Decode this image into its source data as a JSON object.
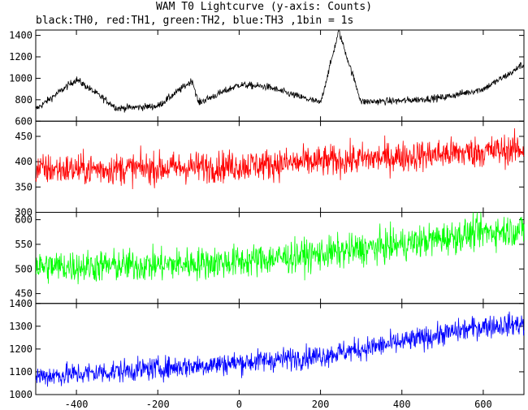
{
  "chart_data": {
    "type": "line",
    "title": "WAM T0 Lightcurve (y-axis: Counts)",
    "subtitle": "black:TH0, red:TH1, green:TH2, blue:TH3 ,1bin = 1s",
    "xlim": [
      -500,
      700
    ],
    "x_ticks": [
      -400,
      -200,
      0,
      200,
      400,
      600
    ],
    "grid": false,
    "series": [
      {
        "name": "TH0",
        "color": "#000000",
        "ylim": [
          600,
          1450
        ],
        "y_ticks": [
          600,
          800,
          1000,
          1200,
          1400
        ],
        "baseline_start": 700,
        "baseline_end": 950,
        "noise": 30,
        "features": [
          {
            "t": -400,
            "peak": 990
          },
          {
            "t": -115,
            "peak": 980
          },
          {
            "t": 0,
            "peak": 940
          },
          {
            "t": 70,
            "peak": 920
          },
          {
            "t": 120,
            "peak": 860
          },
          {
            "t": 245,
            "peak": 1440
          },
          {
            "t": 690,
            "peak": 1120
          }
        ],
        "points": [
          [
            -500,
            710
          ],
          [
            -400,
            990
          ],
          [
            -300,
            720
          ],
          [
            -200,
            740
          ],
          [
            -115,
            980
          ],
          [
            -100,
            770
          ],
          [
            0,
            940
          ],
          [
            70,
            920
          ],
          [
            120,
            860
          ],
          [
            200,
            770
          ],
          [
            245,
            1440
          ],
          [
            300,
            780
          ],
          [
            400,
            790
          ],
          [
            500,
            820
          ],
          [
            600,
            900
          ],
          [
            700,
            1120
          ]
        ]
      },
      {
        "name": "TH1",
        "color": "#ff0000",
        "ylim": [
          300,
          480
        ],
        "y_ticks": [
          300,
          350,
          400,
          450
        ],
        "baseline_start": 385,
        "baseline_end": 425,
        "noise": 28,
        "points": [
          [
            -500,
            385
          ],
          [
            -400,
            385
          ],
          [
            -200,
            387
          ],
          [
            0,
            392
          ],
          [
            200,
            400
          ],
          [
            400,
            410
          ],
          [
            600,
            420
          ],
          [
            700,
            425
          ]
        ]
      },
      {
        "name": "TH2",
        "color": "#00ff00",
        "ylim": [
          430,
          615
        ],
        "y_ticks": [
          450,
          500,
          550,
          600
        ],
        "baseline_start": 505,
        "baseline_end": 580,
        "noise": 30,
        "points": [
          [
            -500,
            505
          ],
          [
            -400,
            505
          ],
          [
            -200,
            508
          ],
          [
            0,
            515
          ],
          [
            200,
            530
          ],
          [
            400,
            550
          ],
          [
            600,
            575
          ],
          [
            700,
            580
          ]
        ]
      },
      {
        "name": "TH3",
        "color": "#0000ff",
        "ylim": [
          1000,
          1400
        ],
        "y_ticks": [
          1000,
          1100,
          1200,
          1300,
          1400
        ],
        "baseline_start": 1080,
        "baseline_end": 1310,
        "noise": 45,
        "points": [
          [
            -500,
            1080
          ],
          [
            -400,
            1090
          ],
          [
            -200,
            1115
          ],
          [
            0,
            1140
          ],
          [
            200,
            1170
          ],
          [
            300,
            1200
          ],
          [
            400,
            1230
          ],
          [
            600,
            1300
          ],
          [
            700,
            1310
          ]
        ]
      }
    ]
  }
}
